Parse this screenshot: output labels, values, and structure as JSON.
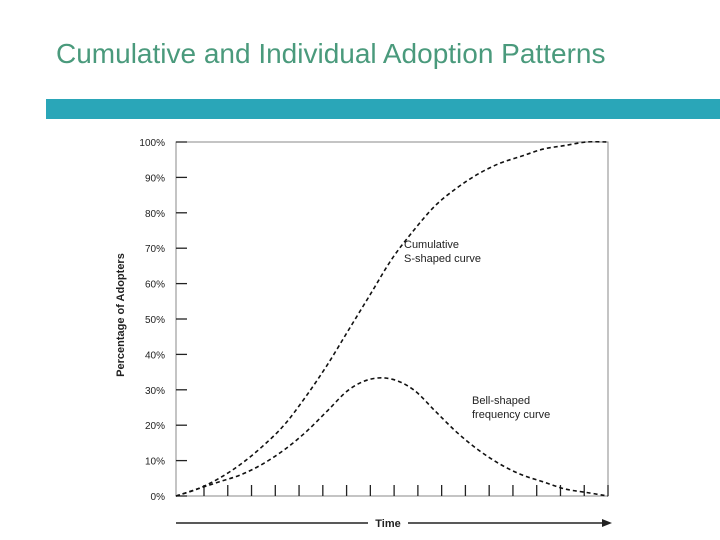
{
  "slide": {
    "title": "Cumulative and Individual Adoption Patterns",
    "accent_color": "#2aa6b8",
    "title_color": "#4a9a7c"
  },
  "chart_data": {
    "type": "line",
    "title": "",
    "xlabel": "Time",
    "ylabel": "Percentage of Adopters",
    "ylim": [
      0,
      100
    ],
    "xlim": [
      0,
      100
    ],
    "y_ticks": [
      "0%",
      "10%",
      "20%",
      "30%",
      "40%",
      "50%",
      "60%",
      "70%",
      "80%",
      "90%",
      "100%"
    ],
    "line_style": "dashed",
    "grid": false,
    "series": [
      {
        "name": "Cumulative S-shaped curve",
        "x": [
          0,
          5,
          10,
          15,
          20,
          25,
          30,
          35,
          40,
          45,
          50,
          55,
          60,
          65,
          70,
          75,
          80,
          85,
          90,
          95,
          100
        ],
        "y": [
          0,
          2,
          5,
          9,
          14,
          20,
          28,
          37,
          47,
          57,
          67,
          75,
          82,
          87,
          91,
          94,
          96,
          98,
          99,
          100,
          100
        ]
      },
      {
        "name": "Bell-shaped frequency curve",
        "x": [
          0,
          5,
          10,
          15,
          20,
          25,
          30,
          35,
          40,
          45,
          50,
          55,
          60,
          65,
          70,
          75,
          80,
          85,
          90,
          95,
          100
        ],
        "y": [
          0,
          2,
          4,
          6,
          9,
          13,
          18,
          24,
          30,
          33,
          33,
          30,
          24,
          18,
          13,
          9,
          6,
          4,
          2,
          1,
          0
        ]
      }
    ],
    "annotations": [
      {
        "line1": "Cumulative",
        "line2": "S-shaped curve"
      },
      {
        "line1": "Bell-shaped",
        "line2": "frequency curve"
      }
    ]
  }
}
